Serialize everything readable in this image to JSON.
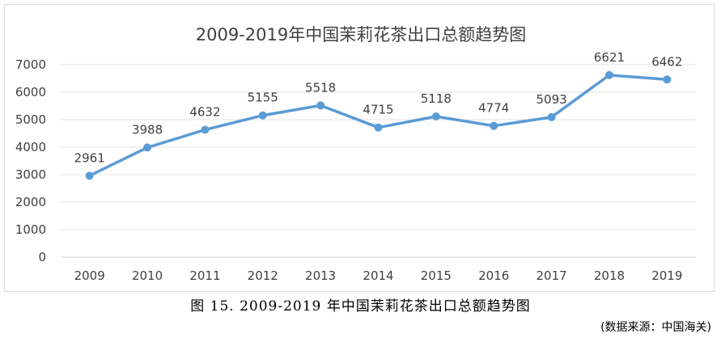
{
  "caption": "图 15. 2009-2019 年中国茉莉花茶出口总额趋势图",
  "source": "(数据来源：中国海关)",
  "chart_data": {
    "type": "line",
    "title": "2009-2019年中国茉莉花茶出口总额趋势图",
    "xlabel": "",
    "ylabel": "",
    "categories": [
      "2009",
      "2010",
      "2011",
      "2012",
      "2013",
      "2014",
      "2015",
      "2016",
      "2017",
      "2018",
      "2019"
    ],
    "values": [
      2961,
      3988,
      4632,
      5155,
      5518,
      4715,
      5118,
      4774,
      5093,
      6621,
      6462
    ],
    "data_labels": [
      "2961",
      "3988",
      "4632",
      "5155",
      "5518",
      "4715",
      "5118",
      "4774",
      "5093",
      "6621",
      "6462"
    ],
    "yticks": [
      "0",
      "1000",
      "2000",
      "3000",
      "4000",
      "5000",
      "6000",
      "7000"
    ],
    "ylim": [
      0,
      7000
    ],
    "grid": true,
    "legend": "none",
    "line_color": "#5b9bd5"
  }
}
